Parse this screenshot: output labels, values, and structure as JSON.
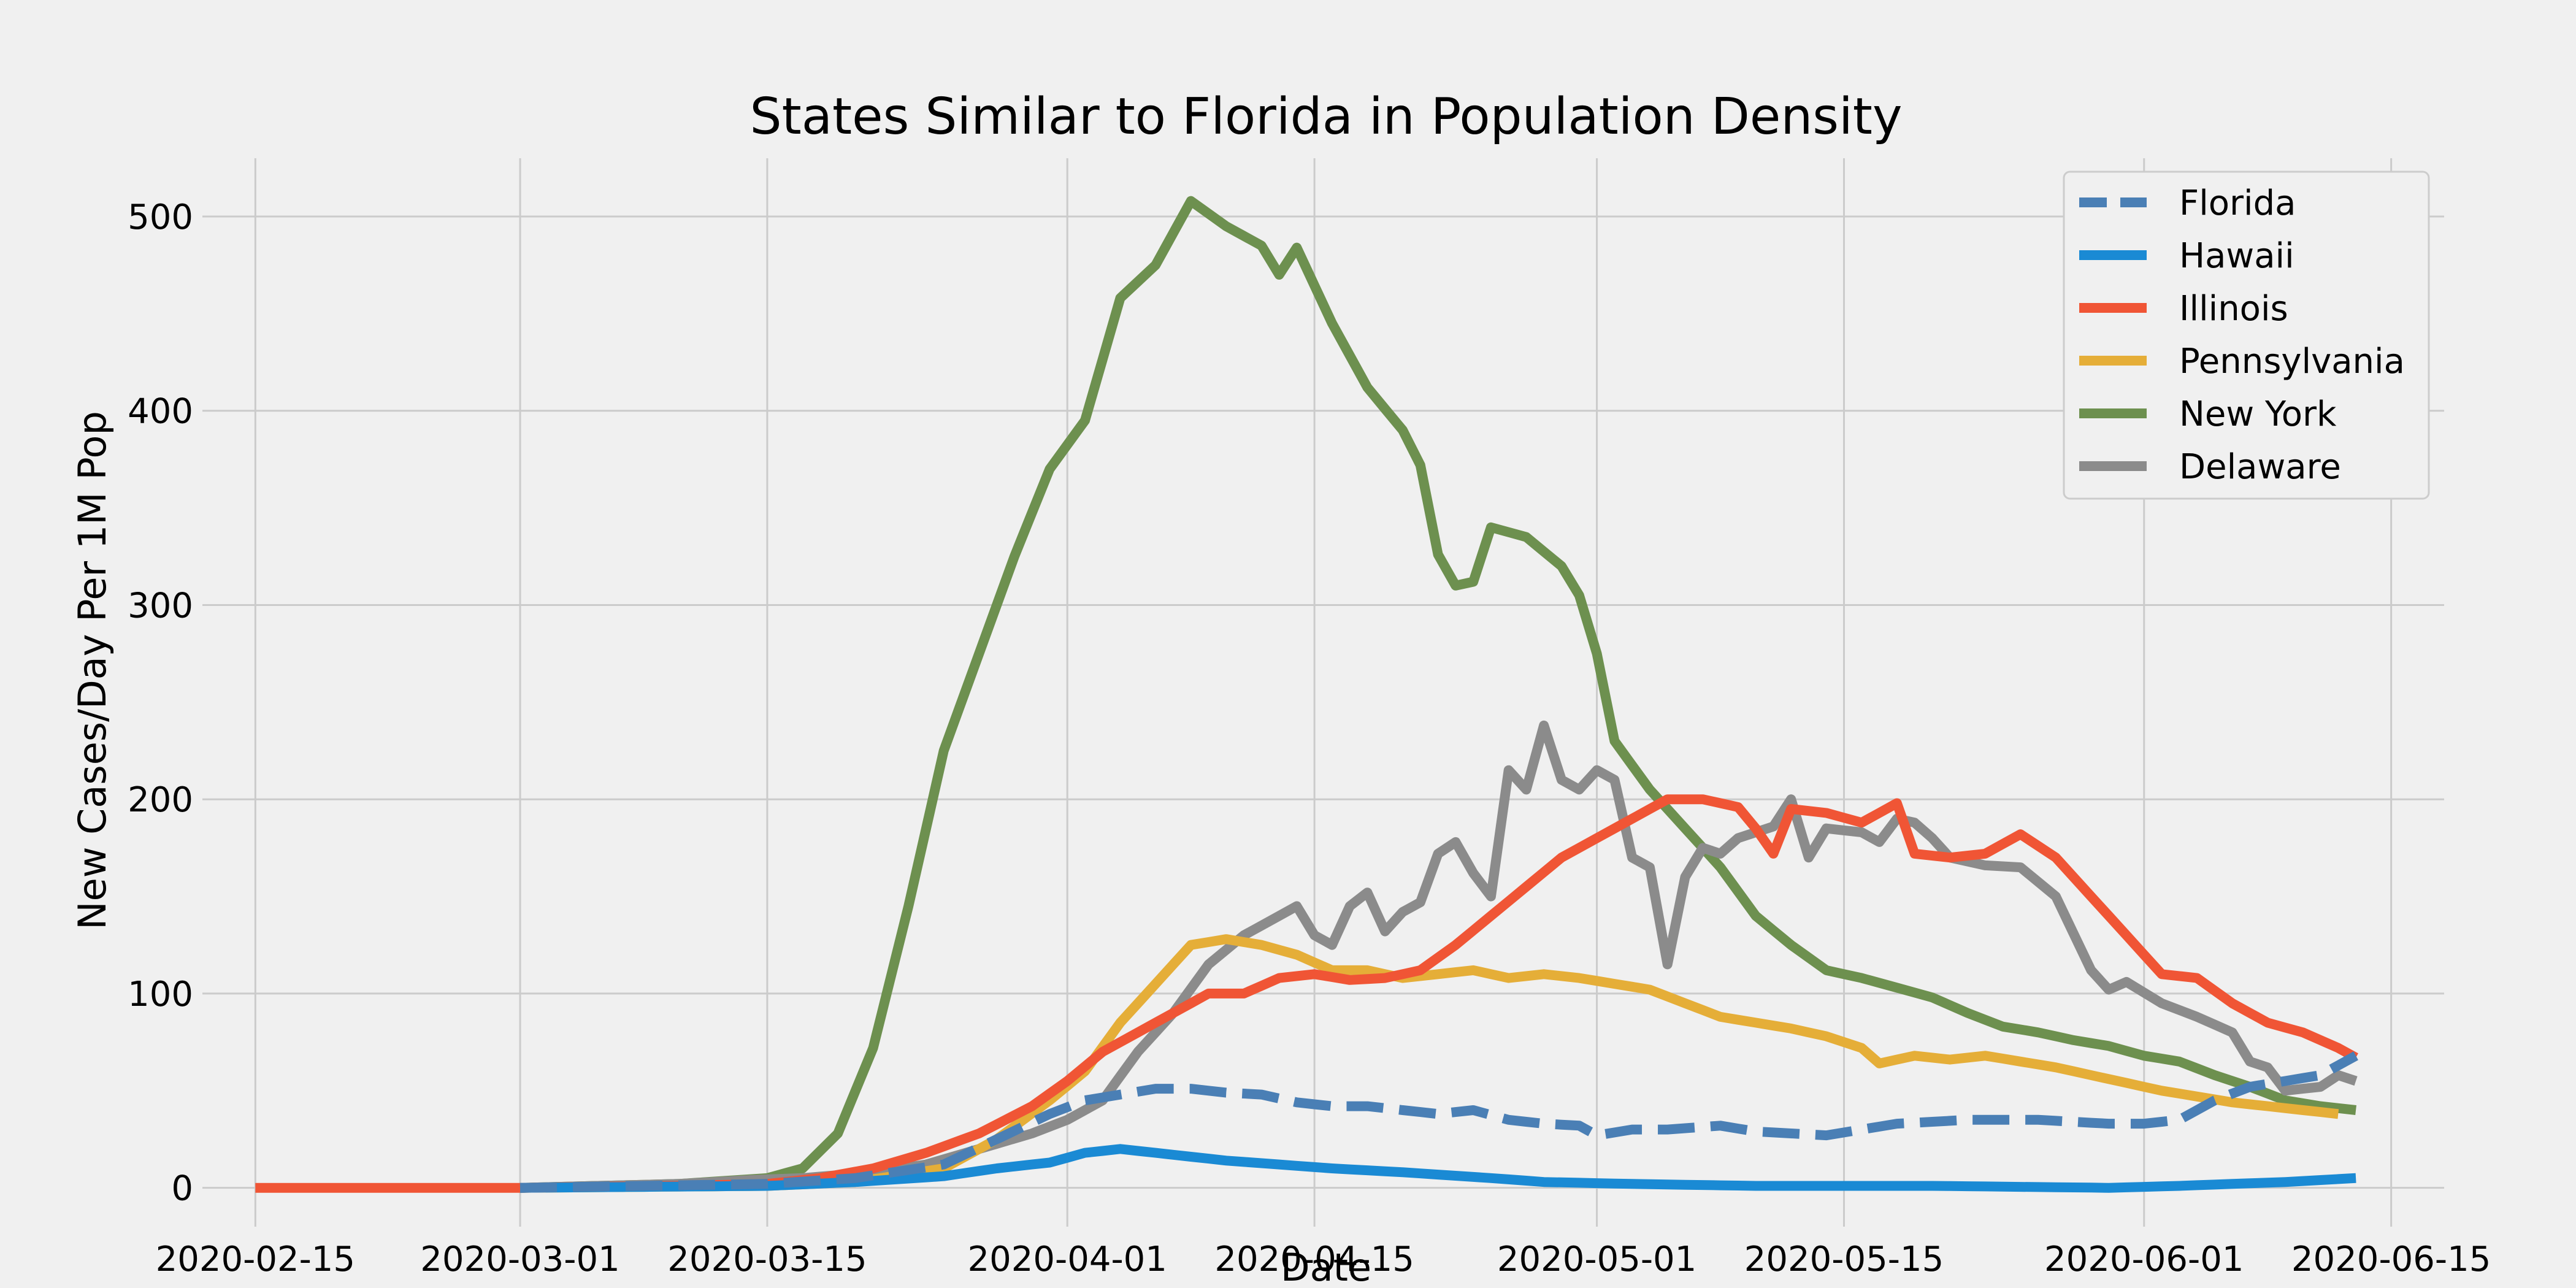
{
  "chart_data": {
    "type": "line",
    "title": "States Similar to Florida in Population Density",
    "xlabel": "Date",
    "ylabel": "New Cases/Day Per 1M Pop",
    "x_range": [
      "2020-02-12",
      "2020-06-18"
    ],
    "ylim": [
      -20,
      530
    ],
    "x_ticks": [
      "2020-02-15",
      "2020-03-01",
      "2020-03-15",
      "2020-04-01",
      "2020-04-15",
      "2020-05-01",
      "2020-05-15",
      "2020-06-01",
      "2020-06-15"
    ],
    "y_ticks": [
      0,
      100,
      200,
      300,
      400,
      500
    ],
    "grid": true,
    "legend_position": "top-right",
    "series": [
      {
        "name": "Florida",
        "color": "#4a7fb5",
        "dashed": true,
        "points": [
          [
            "2020-03-01",
            0
          ],
          [
            "2020-03-15",
            2
          ],
          [
            "2020-03-20",
            5
          ],
          [
            "2020-03-25",
            12
          ],
          [
            "2020-03-28",
            25
          ],
          [
            "2020-03-31",
            38
          ],
          [
            "2020-04-02",
            45
          ],
          [
            "2020-04-04",
            48
          ],
          [
            "2020-04-06",
            51
          ],
          [
            "2020-04-08",
            51
          ],
          [
            "2020-04-10",
            49
          ],
          [
            "2020-04-12",
            48
          ],
          [
            "2020-04-14",
            44
          ],
          [
            "2020-04-16",
            42
          ],
          [
            "2020-04-18",
            42
          ],
          [
            "2020-04-20",
            40
          ],
          [
            "2020-04-22",
            38
          ],
          [
            "2020-04-24",
            40
          ],
          [
            "2020-04-26",
            35
          ],
          [
            "2020-04-28",
            33
          ],
          [
            "2020-04-30",
            32
          ],
          [
            "2020-05-01",
            27
          ],
          [
            "2020-05-03",
            30
          ],
          [
            "2020-05-05",
            30
          ],
          [
            "2020-05-08",
            32
          ],
          [
            "2020-05-10",
            29
          ],
          [
            "2020-05-12",
            28
          ],
          [
            "2020-05-14",
            27
          ],
          [
            "2020-05-16",
            30
          ],
          [
            "2020-05-18",
            33
          ],
          [
            "2020-05-20",
            34
          ],
          [
            "2020-05-22",
            35
          ],
          [
            "2020-05-24",
            35
          ],
          [
            "2020-05-26",
            35
          ],
          [
            "2020-05-28",
            34
          ],
          [
            "2020-05-30",
            33
          ],
          [
            "2020-06-01",
            33
          ],
          [
            "2020-06-03",
            35
          ],
          [
            "2020-06-05",
            45
          ],
          [
            "2020-06-07",
            52
          ],
          [
            "2020-06-09",
            55
          ],
          [
            "2020-06-11",
            58
          ],
          [
            "2020-06-13",
            68
          ]
        ]
      },
      {
        "name": "Hawaii",
        "color": "#1a8ad4",
        "dashed": false,
        "points": [
          [
            "2020-03-01",
            0
          ],
          [
            "2020-03-15",
            1
          ],
          [
            "2020-03-20",
            3
          ],
          [
            "2020-03-25",
            6
          ],
          [
            "2020-03-28",
            10
          ],
          [
            "2020-03-31",
            13
          ],
          [
            "2020-04-02",
            18
          ],
          [
            "2020-04-04",
            20
          ],
          [
            "2020-04-06",
            18
          ],
          [
            "2020-04-08",
            16
          ],
          [
            "2020-04-10",
            14
          ],
          [
            "2020-04-13",
            12
          ],
          [
            "2020-04-16",
            10
          ],
          [
            "2020-04-20",
            8
          ],
          [
            "2020-04-25",
            5
          ],
          [
            "2020-04-28",
            3
          ],
          [
            "2020-05-03",
            2
          ],
          [
            "2020-05-10",
            1
          ],
          [
            "2020-05-20",
            1
          ],
          [
            "2020-05-30",
            0
          ],
          [
            "2020-06-03",
            1
          ],
          [
            "2020-06-06",
            2
          ],
          [
            "2020-06-09",
            3
          ],
          [
            "2020-06-11",
            4
          ],
          [
            "2020-06-13",
            5
          ]
        ]
      },
      {
        "name": "Illinois",
        "color": "#f05535",
        "dashed": false,
        "points": [
          [
            "2020-02-15",
            0
          ],
          [
            "2020-03-01",
            0
          ],
          [
            "2020-03-10",
            1
          ],
          [
            "2020-03-15",
            2
          ],
          [
            "2020-03-18",
            5
          ],
          [
            "2020-03-21",
            10
          ],
          [
            "2020-03-24",
            18
          ],
          [
            "2020-03-27",
            28
          ],
          [
            "2020-03-30",
            42
          ],
          [
            "2020-04-01",
            55
          ],
          [
            "2020-04-03",
            70
          ],
          [
            "2020-04-05",
            80
          ],
          [
            "2020-04-07",
            90
          ],
          [
            "2020-04-09",
            100
          ],
          [
            "2020-04-11",
            100
          ],
          [
            "2020-04-13",
            108
          ],
          [
            "2020-04-15",
            110
          ],
          [
            "2020-04-17",
            107
          ],
          [
            "2020-04-19",
            108
          ],
          [
            "2020-04-21",
            112
          ],
          [
            "2020-04-23",
            125
          ],
          [
            "2020-04-25",
            140
          ],
          [
            "2020-04-27",
            155
          ],
          [
            "2020-04-29",
            170
          ],
          [
            "2020-05-01",
            180
          ],
          [
            "2020-05-03",
            190
          ],
          [
            "2020-05-05",
            200
          ],
          [
            "2020-05-07",
            200
          ],
          [
            "2020-05-09",
            196
          ],
          [
            "2020-05-10",
            185
          ],
          [
            "2020-05-11",
            172
          ],
          [
            "2020-05-12",
            195
          ],
          [
            "2020-05-14",
            193
          ],
          [
            "2020-05-16",
            188
          ],
          [
            "2020-05-18",
            198
          ],
          [
            "2020-05-19",
            172
          ],
          [
            "2020-05-21",
            170
          ],
          [
            "2020-05-23",
            172
          ],
          [
            "2020-05-25",
            182
          ],
          [
            "2020-05-27",
            170
          ],
          [
            "2020-05-29",
            150
          ],
          [
            "2020-05-31",
            130
          ],
          [
            "2020-06-02",
            110
          ],
          [
            "2020-06-04",
            108
          ],
          [
            "2020-06-06",
            95
          ],
          [
            "2020-06-08",
            85
          ],
          [
            "2020-06-10",
            80
          ],
          [
            "2020-06-12",
            72
          ],
          [
            "2020-06-13",
            67
          ]
        ]
      },
      {
        "name": "Pennsylvania",
        "color": "#e5ae38",
        "dashed": false,
        "points": [
          [
            "2020-03-01",
            0
          ],
          [
            "2020-03-15",
            1
          ],
          [
            "2020-03-20",
            3
          ],
          [
            "2020-03-25",
            10
          ],
          [
            "2020-03-28",
            25
          ],
          [
            "2020-03-31",
            45
          ],
          [
            "2020-04-02",
            60
          ],
          [
            "2020-04-04",
            85
          ],
          [
            "2020-04-06",
            105
          ],
          [
            "2020-04-08",
            125
          ],
          [
            "2020-04-10",
            128
          ],
          [
            "2020-04-12",
            125
          ],
          [
            "2020-04-14",
            120
          ],
          [
            "2020-04-16",
            112
          ],
          [
            "2020-04-18",
            112
          ],
          [
            "2020-04-20",
            108
          ],
          [
            "2020-04-22",
            110
          ],
          [
            "2020-04-24",
            112
          ],
          [
            "2020-04-26",
            108
          ],
          [
            "2020-04-28",
            110
          ],
          [
            "2020-04-30",
            108
          ],
          [
            "2020-05-02",
            105
          ],
          [
            "2020-05-04",
            102
          ],
          [
            "2020-05-06",
            95
          ],
          [
            "2020-05-08",
            88
          ],
          [
            "2020-05-10",
            85
          ],
          [
            "2020-05-12",
            82
          ],
          [
            "2020-05-14",
            78
          ],
          [
            "2020-05-16",
            72
          ],
          [
            "2020-05-17",
            64
          ],
          [
            "2020-05-19",
            68
          ],
          [
            "2020-05-21",
            66
          ],
          [
            "2020-05-23",
            68
          ],
          [
            "2020-05-25",
            65
          ],
          [
            "2020-05-27",
            62
          ],
          [
            "2020-05-29",
            58
          ],
          [
            "2020-05-31",
            54
          ],
          [
            "2020-06-02",
            50
          ],
          [
            "2020-06-04",
            47
          ],
          [
            "2020-06-06",
            44
          ],
          [
            "2020-06-08",
            42
          ],
          [
            "2020-06-10",
            40
          ],
          [
            "2020-06-12",
            38
          ]
        ]
      },
      {
        "name": "New York",
        "color": "#6d904f",
        "dashed": false,
        "points": [
          [
            "2020-03-01",
            0
          ],
          [
            "2020-03-10",
            2
          ],
          [
            "2020-03-15",
            5
          ],
          [
            "2020-03-17",
            10
          ],
          [
            "2020-03-19",
            28
          ],
          [
            "2020-03-21",
            72
          ],
          [
            "2020-03-23",
            145
          ],
          [
            "2020-03-25",
            225
          ],
          [
            "2020-03-27",
            275
          ],
          [
            "2020-03-29",
            325
          ],
          [
            "2020-03-31",
            370
          ],
          [
            "2020-04-02",
            395
          ],
          [
            "2020-04-04",
            458
          ],
          [
            "2020-04-06",
            475
          ],
          [
            "2020-04-08",
            508
          ],
          [
            "2020-04-10",
            495
          ],
          [
            "2020-04-12",
            485
          ],
          [
            "2020-04-13",
            470
          ],
          [
            "2020-04-14",
            484
          ],
          [
            "2020-04-16",
            445
          ],
          [
            "2020-04-18",
            412
          ],
          [
            "2020-04-20",
            390
          ],
          [
            "2020-04-21",
            372
          ],
          [
            "2020-04-22",
            326
          ],
          [
            "2020-04-23",
            310
          ],
          [
            "2020-04-24",
            312
          ],
          [
            "2020-04-25",
            340
          ],
          [
            "2020-04-27",
            335
          ],
          [
            "2020-04-29",
            320
          ],
          [
            "2020-04-30",
            305
          ],
          [
            "2020-05-01",
            275
          ],
          [
            "2020-05-02",
            230
          ],
          [
            "2020-05-04",
            205
          ],
          [
            "2020-05-06",
            185
          ],
          [
            "2020-05-08",
            165
          ],
          [
            "2020-05-10",
            140
          ],
          [
            "2020-05-12",
            125
          ],
          [
            "2020-05-14",
            112
          ],
          [
            "2020-05-16",
            108
          ],
          [
            "2020-05-18",
            103
          ],
          [
            "2020-05-20",
            98
          ],
          [
            "2020-05-22",
            90
          ],
          [
            "2020-05-24",
            83
          ],
          [
            "2020-05-26",
            80
          ],
          [
            "2020-05-28",
            76
          ],
          [
            "2020-05-30",
            73
          ],
          [
            "2020-06-01",
            68
          ],
          [
            "2020-06-03",
            65
          ],
          [
            "2020-06-05",
            58
          ],
          [
            "2020-06-07",
            52
          ],
          [
            "2020-06-09",
            45
          ],
          [
            "2020-06-11",
            42
          ],
          [
            "2020-06-13",
            40
          ]
        ]
      },
      {
        "name": "Delaware",
        "color": "#8b8b8b",
        "dashed": false,
        "points": [
          [
            "2020-03-01",
            0
          ],
          [
            "2020-03-10",
            2
          ],
          [
            "2020-03-12",
            3
          ],
          [
            "2020-03-14",
            4
          ],
          [
            "2020-03-17",
            5
          ],
          [
            "2020-03-21",
            8
          ],
          [
            "2020-03-24",
            12
          ],
          [
            "2020-03-27",
            20
          ],
          [
            "2020-03-30",
            28
          ],
          [
            "2020-04-01",
            35
          ],
          [
            "2020-04-03",
            45
          ],
          [
            "2020-04-05",
            70
          ],
          [
            "2020-04-07",
            90
          ],
          [
            "2020-04-09",
            115
          ],
          [
            "2020-04-11",
            130
          ],
          [
            "2020-04-13",
            140
          ],
          [
            "2020-04-14",
            145
          ],
          [
            "2020-04-15",
            130
          ],
          [
            "2020-04-16",
            125
          ],
          [
            "2020-04-17",
            145
          ],
          [
            "2020-04-18",
            152
          ],
          [
            "2020-04-19",
            132
          ],
          [
            "2020-04-20",
            142
          ],
          [
            "2020-04-21",
            147
          ],
          [
            "2020-04-22",
            172
          ],
          [
            "2020-04-23",
            178
          ],
          [
            "2020-04-24",
            162
          ],
          [
            "2020-04-25",
            150
          ],
          [
            "2020-04-26",
            215
          ],
          [
            "2020-04-27",
            205
          ],
          [
            "2020-04-28",
            238
          ],
          [
            "2020-04-29",
            210
          ],
          [
            "2020-04-30",
            205
          ],
          [
            "2020-05-01",
            215
          ],
          [
            "2020-05-02",
            210
          ],
          [
            "2020-05-03",
            170
          ],
          [
            "2020-05-04",
            165
          ],
          [
            "2020-05-05",
            115
          ],
          [
            "2020-05-06",
            160
          ],
          [
            "2020-05-07",
            175
          ],
          [
            "2020-05-08",
            172
          ],
          [
            "2020-05-09",
            180
          ],
          [
            "2020-05-11",
            186
          ],
          [
            "2020-05-12",
            200
          ],
          [
            "2020-05-13",
            170
          ],
          [
            "2020-05-14",
            185
          ],
          [
            "2020-05-16",
            183
          ],
          [
            "2020-05-17",
            178
          ],
          [
            "2020-05-18",
            190
          ],
          [
            "2020-05-19",
            188
          ],
          [
            "2020-05-20",
            180
          ],
          [
            "2020-05-21",
            170
          ],
          [
            "2020-05-23",
            166
          ],
          [
            "2020-05-25",
            165
          ],
          [
            "2020-05-27",
            150
          ],
          [
            "2020-05-29",
            112
          ],
          [
            "2020-05-30",
            102
          ],
          [
            "2020-05-31",
            106
          ],
          [
            "2020-06-02",
            95
          ],
          [
            "2020-06-04",
            88
          ],
          [
            "2020-06-06",
            80
          ],
          [
            "2020-06-07",
            65
          ],
          [
            "2020-06-08",
            62
          ],
          [
            "2020-06-09",
            50
          ],
          [
            "2020-06-11",
            52
          ],
          [
            "2020-06-12",
            58
          ],
          [
            "2020-06-13",
            55
          ]
        ]
      }
    ]
  }
}
